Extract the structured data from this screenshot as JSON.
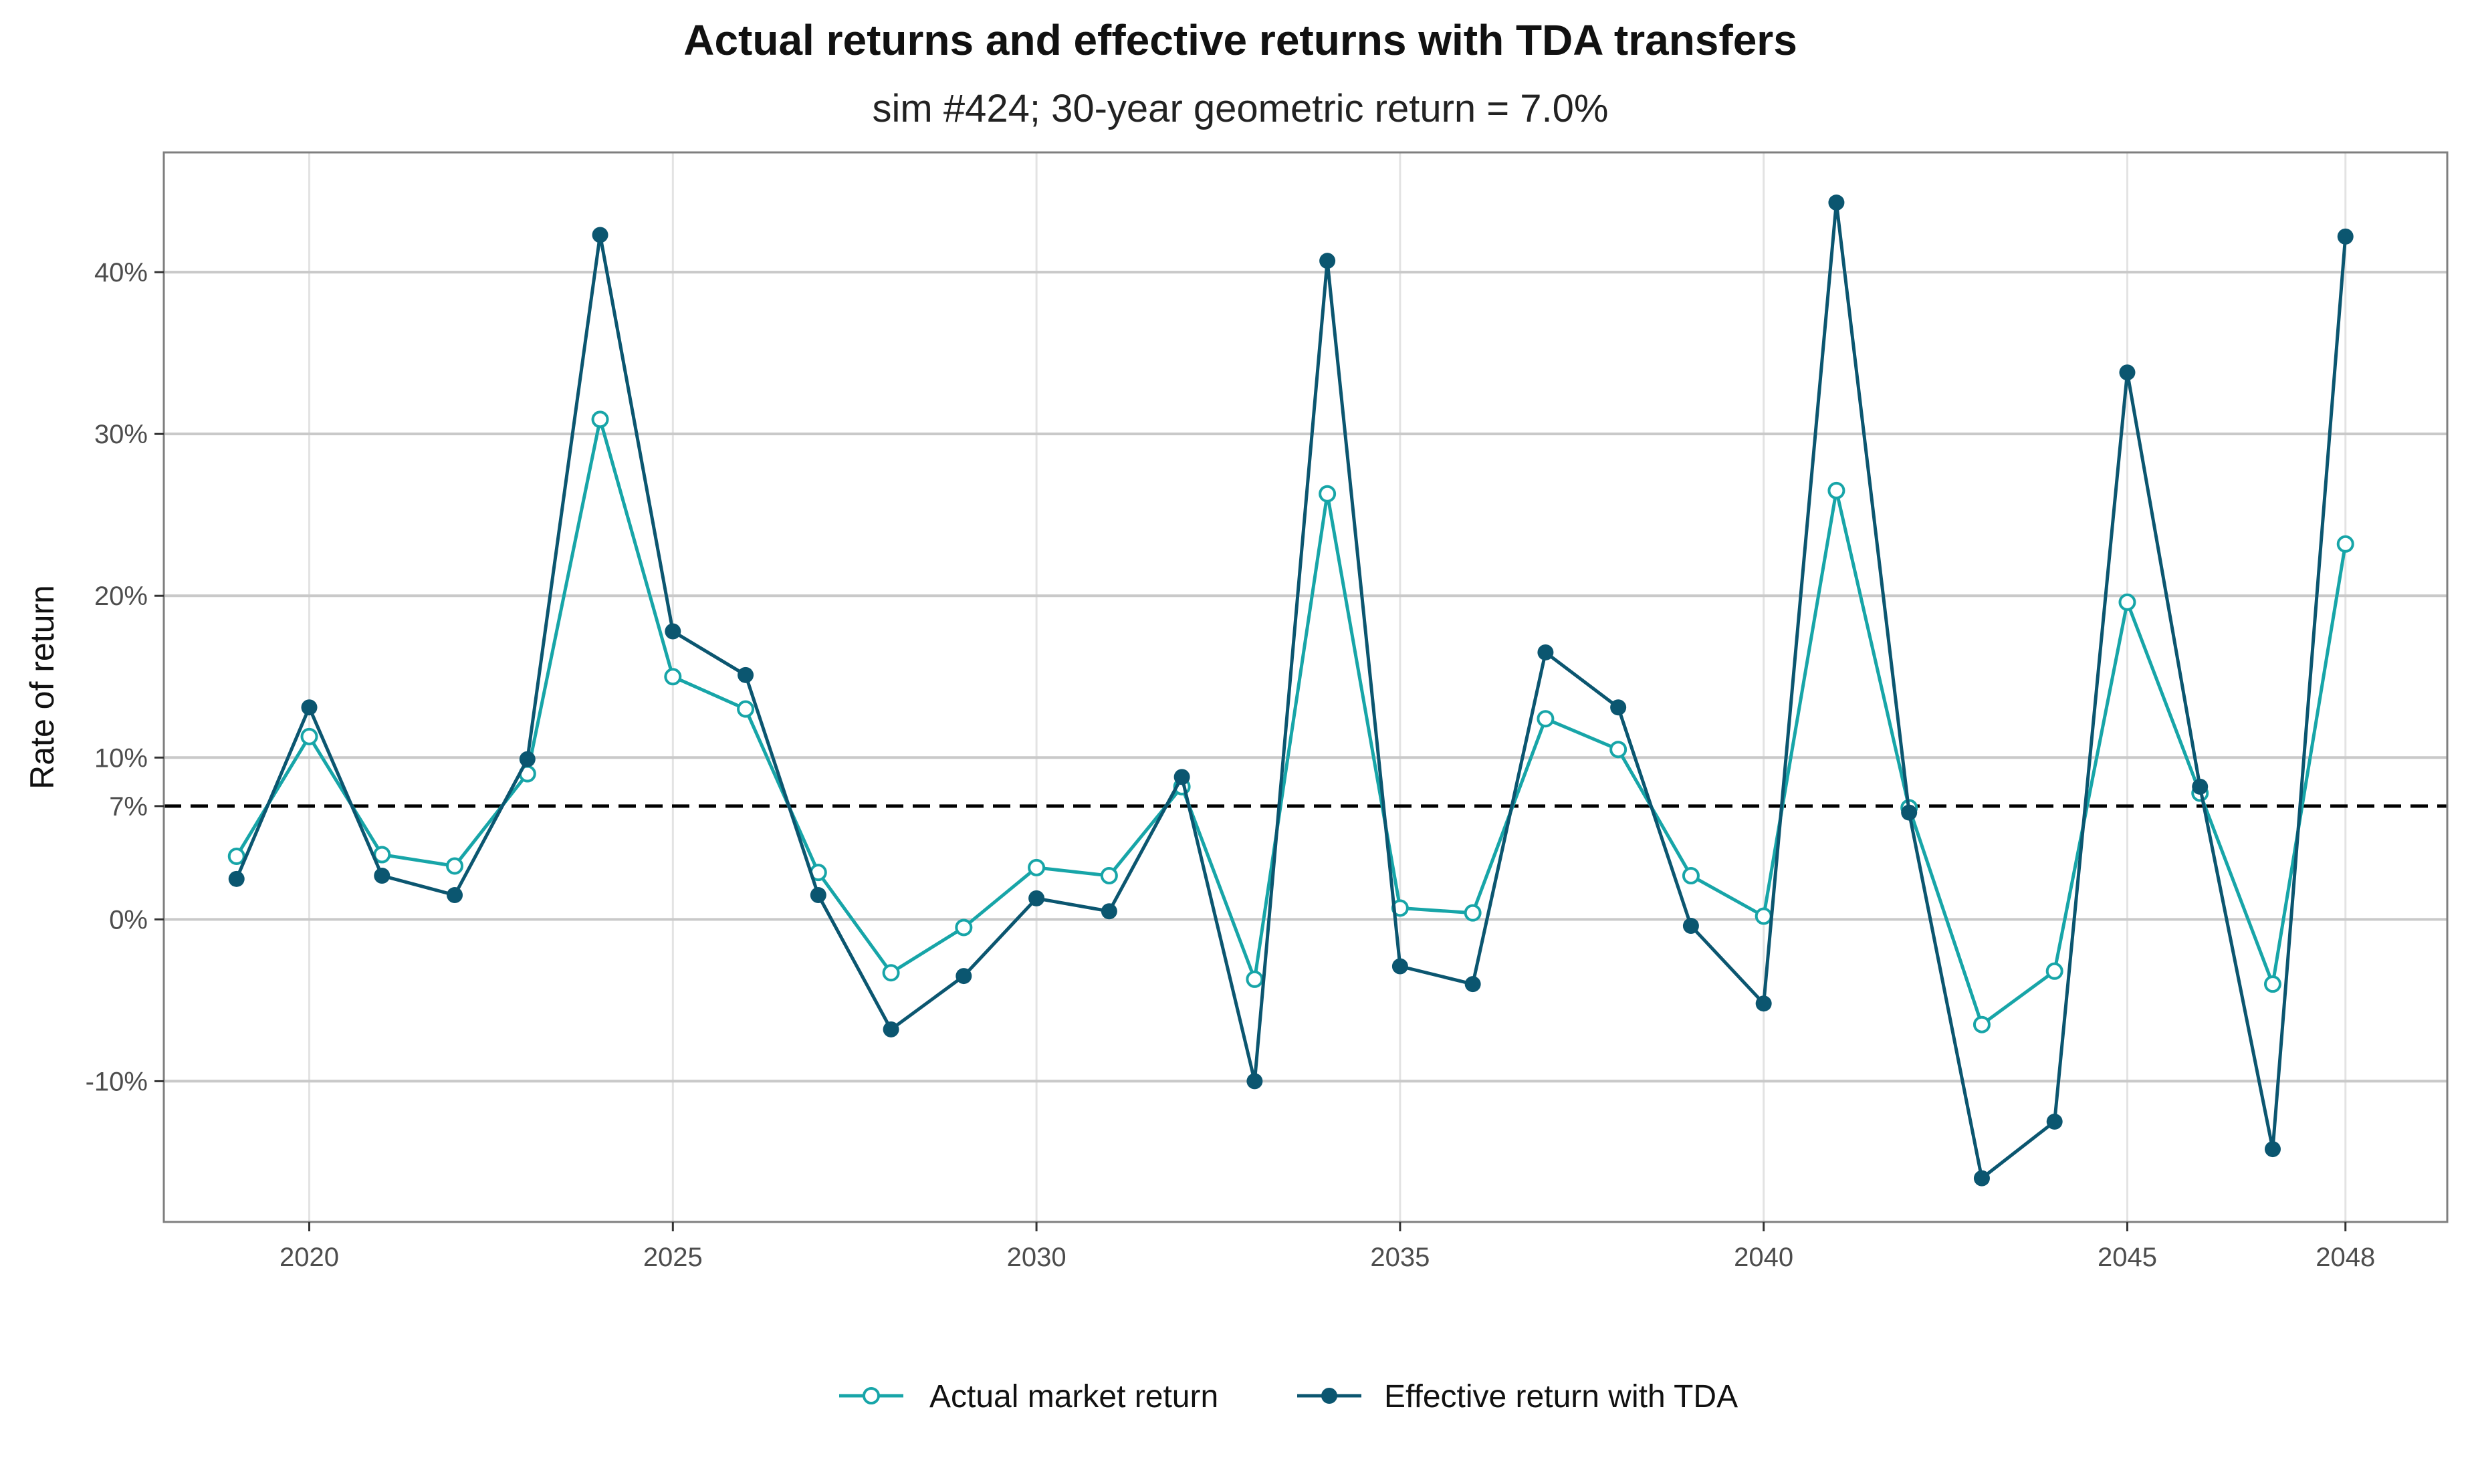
{
  "chart_data": {
    "type": "line",
    "title": "Actual returns and effective returns with TDA transfers",
    "subtitle": "sim #424; 30-year geometric return = 7.0%",
    "xlabel": "",
    "ylabel": "Rate of return",
    "xlim": [
      2018.0,
      2049.4
    ],
    "ylim": [
      -18.7,
      47.4
    ],
    "x_ticks": [
      {
        "value": 2020,
        "label": "2020"
      },
      {
        "value": 2025,
        "label": "2025"
      },
      {
        "value": 2030,
        "label": "2030"
      },
      {
        "value": 2035,
        "label": "2035"
      },
      {
        "value": 2040,
        "label": "2040"
      },
      {
        "value": 2045,
        "label": "2045"
      },
      {
        "value": 2048,
        "label": "2048"
      }
    ],
    "y_ticks": [
      {
        "value": -10,
        "label": "-10%"
      },
      {
        "value": 0,
        "label": "0%"
      },
      {
        "value": 7,
        "label": "7%"
      },
      {
        "value": 10,
        "label": "10%"
      },
      {
        "value": 20,
        "label": "20%"
      },
      {
        "value": 30,
        "label": "30%"
      },
      {
        "value": 40,
        "label": "40%"
      }
    ],
    "reference_line": {
      "y": 7,
      "style": "dashed",
      "color": "#000000"
    },
    "grid": true,
    "legend_position": "bottom",
    "x": [
      2019,
      2020,
      2021,
      2022,
      2023,
      2024,
      2025,
      2026,
      2027,
      2028,
      2029,
      2030,
      2031,
      2032,
      2033,
      2034,
      2035,
      2036,
      2037,
      2038,
      2039,
      2040,
      2041,
      2042,
      2043,
      2044,
      2045,
      2046,
      2047,
      2048
    ],
    "series": [
      {
        "name": "Actual market return",
        "color": "#17a5a8",
        "marker": "open-circle",
        "values": [
          3.9,
          11.3,
          4.0,
          3.3,
          9.0,
          30.9,
          15.0,
          13.0,
          2.9,
          -3.3,
          -0.5,
          3.2,
          2.7,
          8.2,
          -3.7,
          26.3,
          0.7,
          0.4,
          12.4,
          10.5,
          2.7,
          0.2,
          26.5,
          6.9,
          -6.5,
          -3.2,
          19.6,
          7.8,
          -4.0,
          23.2
        ]
      },
      {
        "name": "Effective return with TDA",
        "color": "#0b5670",
        "marker": "filled-circle",
        "values": [
          2.5,
          13.1,
          2.7,
          1.5,
          9.9,
          42.3,
          17.8,
          15.1,
          1.5,
          -6.8,
          -3.5,
          1.3,
          0.5,
          8.8,
          -10.0,
          40.7,
          -2.9,
          -4.0,
          16.5,
          13.1,
          -0.4,
          -5.2,
          44.3,
          6.6,
          -16.0,
          -12.5,
          33.8,
          8.2,
          -14.2,
          42.2
        ]
      }
    ]
  }
}
